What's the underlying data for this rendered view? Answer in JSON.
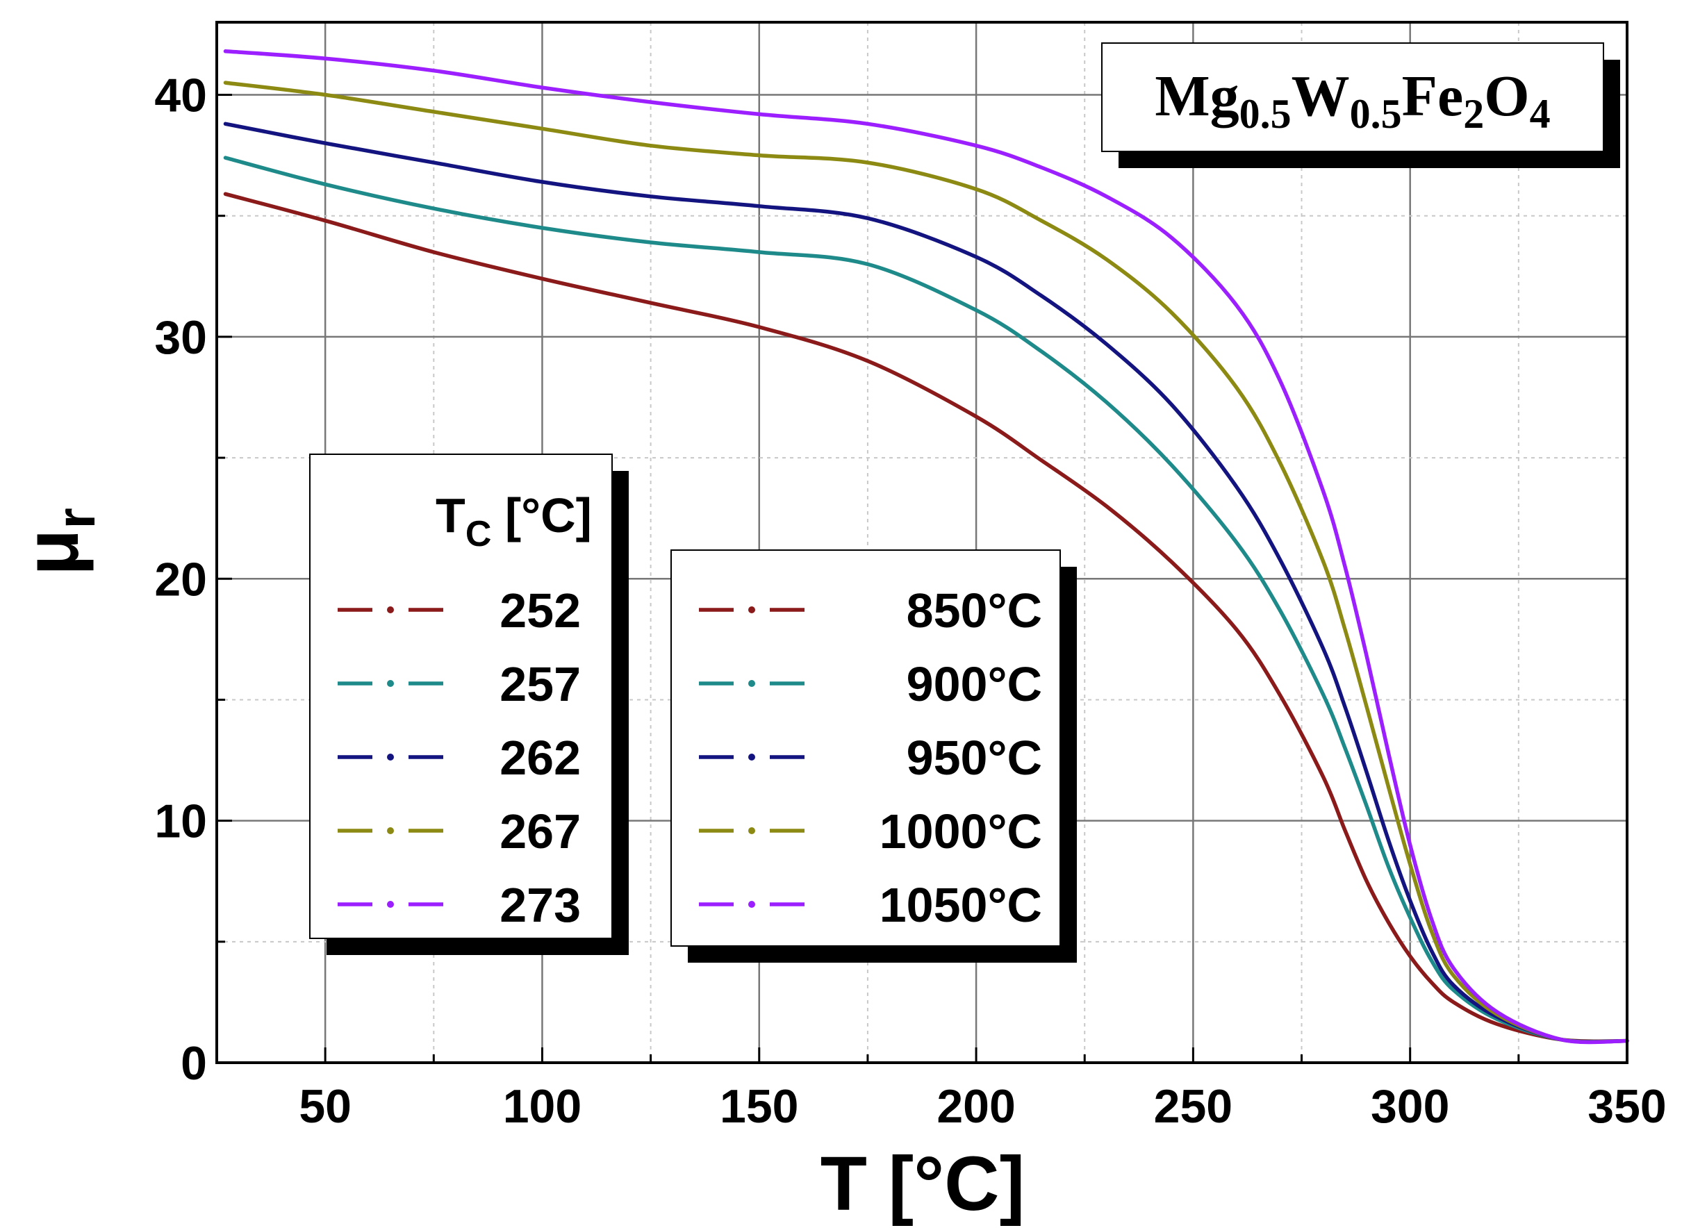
{
  "chart_data": {
    "type": "line",
    "xlabel": "T [°C]",
    "ylabel": "μ",
    "ylabel_sub": "r",
    "xlim": [
      25,
      350
    ],
    "ylim": [
      0,
      43
    ],
    "xticks": [
      50,
      100,
      150,
      200,
      250,
      300,
      350
    ],
    "yticks": [
      0,
      10,
      20,
      30,
      40
    ],
    "grid": true,
    "annotation": {
      "parts": [
        "Mg",
        "0.5",
        "W",
        "0.5",
        "Fe",
        "2",
        "O",
        "4"
      ]
    },
    "legend_tc": {
      "title": "T",
      "title_sub": "C",
      "title_unit": " [°C]",
      "labels": [
        "252",
        "257",
        "262",
        "267",
        "273"
      ]
    },
    "legend_sinter": {
      "labels": [
        "850°C",
        "900°C",
        "950°C",
        "1000°C",
        "1050°C"
      ]
    },
    "x": [
      27,
      50,
      75,
      100,
      125,
      150,
      175,
      200,
      215,
      230,
      245,
      260,
      270,
      280,
      285,
      290,
      295,
      300,
      305,
      310,
      320,
      335,
      350
    ],
    "series": [
      {
        "name": "850°C",
        "tc": "252",
        "color": "#8b1a1a",
        "values": [
          35.9,
          34.8,
          33.5,
          32.4,
          31.4,
          30.4,
          29.0,
          26.7,
          24.9,
          23.0,
          20.7,
          17.9,
          15.2,
          11.8,
          9.6,
          7.5,
          5.8,
          4.4,
          3.3,
          2.5,
          1.6,
          0.95,
          0.9
        ]
      },
      {
        "name": "900°C",
        "tc": "257",
        "color": "#1e8a8a",
        "values": [
          37.4,
          36.3,
          35.3,
          34.5,
          33.9,
          33.5,
          33.0,
          31.1,
          29.4,
          27.3,
          24.7,
          21.5,
          18.7,
          15.2,
          13.0,
          10.6,
          8.1,
          6.0,
          4.2,
          3.0,
          1.8,
          0.95,
          0.9
        ]
      },
      {
        "name": "950°C",
        "tc": "262",
        "color": "#141480",
        "values": [
          38.8,
          38.0,
          37.2,
          36.4,
          35.8,
          35.4,
          34.9,
          33.3,
          31.7,
          29.7,
          27.2,
          23.8,
          20.8,
          17.1,
          14.7,
          12.0,
          9.2,
          6.7,
          4.6,
          3.2,
          1.9,
          0.95,
          0.9
        ]
      },
      {
        "name": "1000°C",
        "tc": "267",
        "color": "#8c8a12",
        "values": [
          40.5,
          40.0,
          39.3,
          38.6,
          37.9,
          37.5,
          37.2,
          36.1,
          34.8,
          33.2,
          31.0,
          27.9,
          24.8,
          20.7,
          17.9,
          14.7,
          11.4,
          8.2,
          5.4,
          3.6,
          2.0,
          0.95,
          0.9
        ]
      },
      {
        "name": "1050°C",
        "tc": "273",
        "color": "#9b1fff",
        "values": [
          41.8,
          41.5,
          41.0,
          40.3,
          39.7,
          39.2,
          38.8,
          37.9,
          37.0,
          35.8,
          34.1,
          31.3,
          28.2,
          23.6,
          20.5,
          16.8,
          12.8,
          9.0,
          5.9,
          3.9,
          2.1,
          0.95,
          0.9
        ]
      }
    ]
  }
}
